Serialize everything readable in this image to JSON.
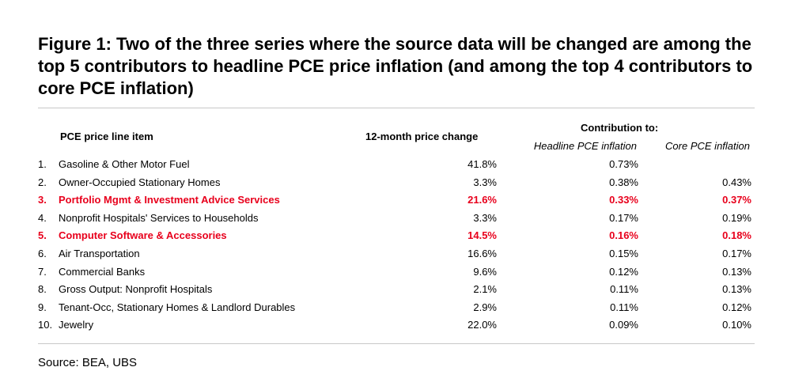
{
  "figure": {
    "title": "Figure 1: Two of the three series where the source data will be changed are among the top 5 contributors to headline PCE price inflation (and among the top 4 contributors to core PCE inflation)"
  },
  "table": {
    "headers": {
      "item": "PCE price line item",
      "change": "12-month price change",
      "contribution_group": "Contribution to:",
      "headline": "Headline PCE inflation",
      "core": "Core PCE inflation"
    },
    "highlight_color": "#e8001c",
    "rows": [
      {
        "num": "1.",
        "item": "Gasoline & Other Motor Fuel",
        "change": "41.8%",
        "headline": "0.73%",
        "core": "",
        "highlight": false
      },
      {
        "num": "2.",
        "item": "Owner-Occupied Stationary Homes",
        "change": "3.3%",
        "headline": "0.38%",
        "core": "0.43%",
        "highlight": false
      },
      {
        "num": "3.",
        "item": "Portfolio Mgmt & Investment Advice Services",
        "change": "21.6%",
        "headline": "0.33%",
        "core": "0.37%",
        "highlight": true
      },
      {
        "num": "4.",
        "item": "Nonprofit Hospitals' Services to Households",
        "change": "3.3%",
        "headline": "0.17%",
        "core": "0.19%",
        "highlight": false
      },
      {
        "num": "5.",
        "item": "Computer Software & Accessories",
        "change": "14.5%",
        "headline": "0.16%",
        "core": "0.18%",
        "highlight": true
      },
      {
        "num": "6.",
        "item": "Air Transportation",
        "change": "16.6%",
        "headline": "0.15%",
        "core": "0.17%",
        "highlight": false
      },
      {
        "num": "7.",
        "item": "Commercial Banks",
        "change": "9.6%",
        "headline": "0.12%",
        "core": "0.13%",
        "highlight": false
      },
      {
        "num": "8.",
        "item": "Gross Output: Nonprofit Hospitals",
        "change": "2.1%",
        "headline": "0.11%",
        "core": "0.13%",
        "highlight": false
      },
      {
        "num": "9.",
        "item": "Tenant-Occ, Stationary Homes & Landlord Durables",
        "change": "2.9%",
        "headline": "0.11%",
        "core": "0.12%",
        "highlight": false
      },
      {
        "num": "10.",
        "item": "Jewelry",
        "change": "22.0%",
        "headline": "0.09%",
        "core": "0.10%",
        "highlight": false
      }
    ]
  },
  "source": "Source: BEA, UBS"
}
